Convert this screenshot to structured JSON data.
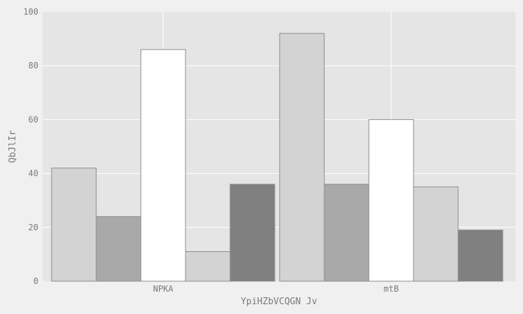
{
  "chart_data": {
    "type": "bar",
    "title": "",
    "xlabel": "YpiHZbVCQGN Jv",
    "ylabel": "QbJlIr",
    "ylim": [
      0,
      100
    ],
    "yticks": [
      0,
      20,
      40,
      60,
      80,
      100
    ],
    "yticklabels": [
      "0",
      "20",
      "40",
      "60",
      "80",
      "100"
    ],
    "categories": [
      "NPKA",
      "mtB"
    ],
    "grid": true,
    "legend": "none",
    "series": [
      {
        "color": "#d3d3d3",
        "values": [
          42,
          92
        ]
      },
      {
        "color": "#a9a9a9",
        "values": [
          24,
          36
        ]
      },
      {
        "color": "#ffffff",
        "values": [
          86,
          60
        ]
      },
      {
        "color": "#d3d3d3",
        "values": [
          11,
          35
        ]
      },
      {
        "color": "#808080",
        "values": [
          36,
          19
        ]
      }
    ],
    "colors": {
      "figure_bg": "#f0f0f0",
      "plot_bg": "#e5e5e5",
      "grid": "#ffffff",
      "bar_edge": "#8c8c8c",
      "text": "#7a7a7a"
    }
  }
}
